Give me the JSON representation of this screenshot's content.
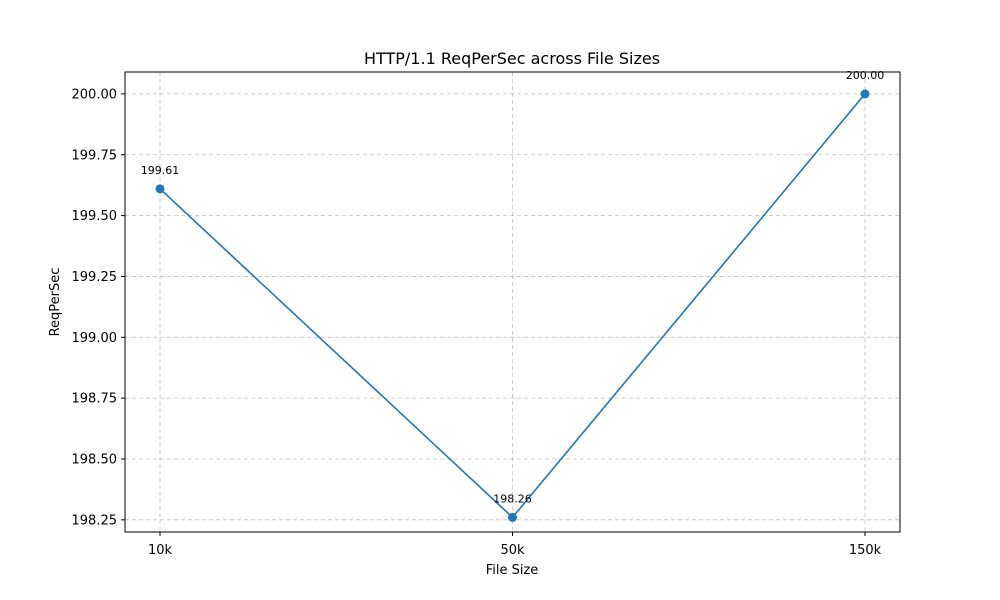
{
  "chart_data": {
    "type": "line",
    "title": "HTTP/1.1 ReqPerSec across File Sizes",
    "xlabel": "File Size",
    "ylabel": "ReqPerSec",
    "categories": [
      "10k",
      "50k",
      "150k"
    ],
    "series": [
      {
        "values": [
          199.61,
          198.26,
          200.0
        ],
        "color": "#1f77b4"
      }
    ],
    "data_labels": [
      "199.61",
      "198.26",
      "200.00"
    ],
    "yticks": [
      198.25,
      198.5,
      198.75,
      199.0,
      199.25,
      199.5,
      199.75,
      200.0
    ],
    "ytick_labels": [
      "198.25",
      "198.50",
      "198.75",
      "199.00",
      "199.25",
      "199.50",
      "199.75",
      "200.00"
    ],
    "ylim": [
      198.2,
      200.09
    ],
    "grid": true,
    "marker": "circle"
  }
}
